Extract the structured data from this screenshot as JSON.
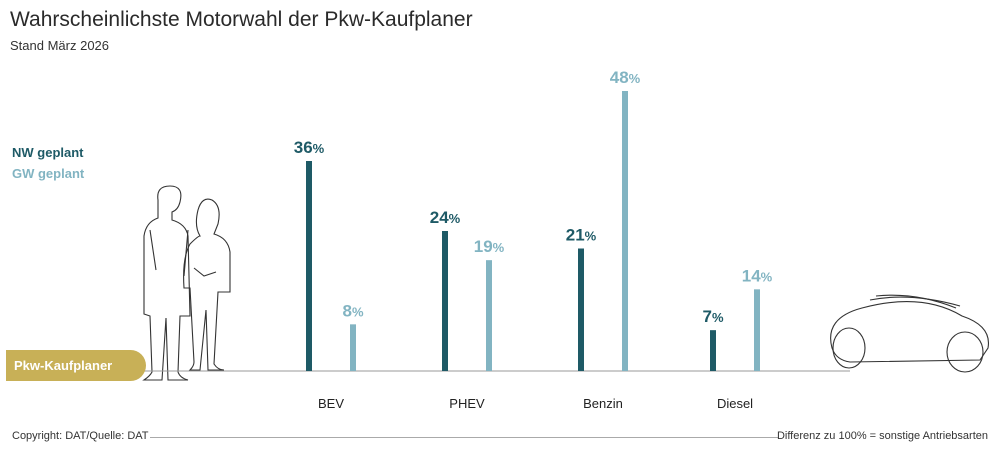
{
  "header": {
    "title": "Wahrscheinlichste Motorwahl der Pkw-Kaufplaner",
    "subtitle": "Stand März 2026"
  },
  "colors": {
    "nw": "#1e5a66",
    "gw": "#82b4c2",
    "badge": "#c8b057"
  },
  "badge": {
    "label": "Pkw-Kaufplaner"
  },
  "footer": {
    "copyright": "Copyright: DAT/Quelle: DAT",
    "note": "Differenz zu 100% = sonstige Antriebsarten"
  },
  "icons": {
    "people": "people-illustration-icon",
    "car": "car-outline-icon"
  },
  "chart_data": {
    "type": "bar",
    "categories": [
      "BEV",
      "PHEV",
      "Benzin",
      "Diesel"
    ],
    "series": [
      {
        "name": "NW geplant",
        "values": [
          36,
          24,
          21,
          7
        ]
      },
      {
        "name": "GW geplant",
        "values": [
          8,
          19,
          48,
          14
        ]
      }
    ],
    "unit": "%",
    "ylim": [
      0,
      50
    ],
    "grid": false,
    "legend_position": "left"
  }
}
